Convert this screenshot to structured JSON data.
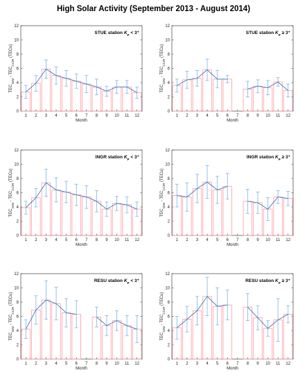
{
  "figure": {
    "title": "High Solar Activity (September 2013 - August 2014)"
  },
  "chart_data": [
    {
      "type": "bar",
      "panel": "top-left",
      "station": "STUE station",
      "kp_prefix": "K",
      "kp_sub": "P",
      "kp_cond": " < 3⁺",
      "ylabel_main": "TEC",
      "ylabel_sub1": "GIM",
      "ylabel_mid": " - TEC",
      "ylabel_sub2": "CCIR",
      "ylabel_unit": " (TECu)",
      "xlabel": "Month",
      "ylim": [
        0,
        12
      ],
      "yticks": [
        "0",
        "2",
        "4",
        "6",
        "8",
        "10",
        "12"
      ],
      "categories": [
        "1",
        "2",
        "3",
        "4",
        "5",
        "6",
        "7",
        "8",
        "9",
        "10",
        "11",
        "12"
      ],
      "values": [
        2.7,
        3.9,
        5.9,
        5.0,
        4.6,
        4.2,
        3.8,
        3.4,
        2.8,
        3.4,
        3.4,
        2.6
      ],
      "errors": [
        0.9,
        1.1,
        1.3,
        1.2,
        1.1,
        1.0,
        1.2,
        1.1,
        0.7,
        0.9,
        0.9,
        0.8
      ]
    },
    {
      "type": "bar",
      "panel": "top-right",
      "station": "STUE station",
      "kp_prefix": "K",
      "kp_sub": "P",
      "kp_cond": " ≥ 3⁺",
      "ylabel_main": "TEC",
      "ylabel_sub1": "GIM",
      "ylabel_mid": " - TEC",
      "ylabel_sub2": "CCIR",
      "ylabel_unit": " (TECu)",
      "xlabel": "Month",
      "ylim": [
        0,
        12
      ],
      "yticks": [
        "0",
        "2",
        "4",
        "6",
        "8",
        "10",
        "12"
      ],
      "categories": [
        "1",
        "2",
        "3",
        "4",
        "5",
        "6",
        "7",
        "8",
        "9",
        "10",
        "11",
        "12"
      ],
      "values": [
        3.6,
        4.4,
        4.6,
        5.8,
        4.5,
        4.5,
        null,
        3.1,
        3.5,
        3.3,
        4.1,
        2.9
      ],
      "errors": [
        0.9,
        1.2,
        1.1,
        1.5,
        1.2,
        0.5,
        null,
        1.1,
        0.9,
        1.0,
        0.6,
        0.9
      ]
    },
    {
      "type": "bar",
      "panel": "middle-left",
      "station": "INGR station",
      "kp_prefix": "K",
      "kp_sub": "P",
      "kp_cond": " < 3⁺",
      "ylabel_main": "TEC",
      "ylabel_sub1": "GIM",
      "ylabel_mid": " - TEC",
      "ylabel_sub2": "CCIR",
      "ylabel_unit": " (TECu)",
      "xlabel": "Month",
      "ylim": [
        0,
        12
      ],
      "yticks": [
        "0",
        "2",
        "4",
        "6",
        "8",
        "10",
        "12"
      ],
      "categories": [
        "1",
        "2",
        "3",
        "4",
        "5",
        "6",
        "7",
        "8",
        "9",
        "10",
        "11",
        "12"
      ],
      "values": [
        3.9,
        5.3,
        7.4,
        6.4,
        6.1,
        5.7,
        5.4,
        4.8,
        3.7,
        4.5,
        4.3,
        3.7
      ],
      "errors": [
        0.9,
        1.3,
        1.9,
        1.7,
        1.5,
        1.5,
        1.6,
        1.5,
        1.0,
        1.0,
        1.1,
        1.0
      ]
    },
    {
      "type": "bar",
      "panel": "middle-right",
      "station": "INGR station",
      "kp_prefix": "K",
      "kp_sub": "P",
      "kp_cond": " ≥ 3⁺",
      "ylabel_main": "TEC",
      "ylabel_sub1": "GIM",
      "ylabel_mid": " - TEC",
      "ylabel_sub2": "CCIR",
      "ylabel_unit": " (TECu)",
      "xlabel": "Month",
      "ylim": [
        0,
        12
      ],
      "yticks": [
        "0",
        "2",
        "4",
        "6",
        "8",
        "10",
        "12"
      ],
      "categories": [
        "1",
        "2",
        "3",
        "4",
        "5",
        "6",
        "7",
        "8",
        "9",
        "10",
        "11",
        "12"
      ],
      "values": [
        5.6,
        5.4,
        6.6,
        7.5,
        6.4,
        6.9,
        null,
        4.8,
        4.6,
        3.7,
        5.4,
        5.2
      ],
      "errors": [
        1.6,
        2.0,
        2.0,
        2.3,
        1.9,
        1.8,
        null,
        1.7,
        1.5,
        1.6,
        0.9,
        1.0
      ]
    },
    {
      "type": "bar",
      "panel": "bottom-left",
      "station": "RESU station",
      "kp_prefix": "K",
      "kp_sub": "P",
      "kp_cond": " < 3⁺",
      "ylabel_main": "TEC",
      "ylabel_sub1": "GIM",
      "ylabel_mid": " - TEC",
      "ylabel_sub2": "CCIR",
      "ylabel_unit": " (TECu)",
      "xlabel": "Month",
      "ylim": [
        0,
        12
      ],
      "yticks": [
        "0",
        "2",
        "4",
        "6",
        "8",
        "10",
        "12"
      ],
      "categories": [
        "1",
        "2",
        "3",
        "4",
        "5",
        "6",
        "7",
        "8",
        "9",
        "10",
        "11",
        "12"
      ],
      "values": [
        4.2,
        6.9,
        8.3,
        7.8,
        6.5,
        6.3,
        null,
        5.9,
        4.7,
        5.4,
        4.7,
        4.2
      ],
      "errors": [
        1.3,
        2.0,
        2.7,
        2.3,
        2.0,
        1.9,
        null,
        1.4,
        1.4,
        1.4,
        1.4,
        1.9
      ]
    },
    {
      "type": "bar",
      "panel": "bottom-right",
      "station": "RESU station",
      "kp_prefix": "K",
      "kp_sub": "P",
      "kp_cond": " ≥ 3⁺",
      "ylabel_main": "TEC",
      "ylabel_sub1": "GIM",
      "ylabel_mid": " - TEC",
      "ylabel_sub2": "CCIR",
      "ylabel_unit": " (TECu)",
      "xlabel": "Month",
      "ylim": [
        0,
        12
      ],
      "yticks": [
        "0",
        "2",
        "4",
        "6",
        "8",
        "10",
        "12"
      ],
      "categories": [
        "1",
        "2",
        "3",
        "4",
        "5",
        "6",
        "7",
        "8",
        "9",
        "10",
        "11",
        "12"
      ],
      "values": [
        4.4,
        5.6,
        6.8,
        8.8,
        7.4,
        7.6,
        null,
        7.3,
        5.8,
        4.3,
        5.5,
        6.3
      ],
      "errors": [
        1.6,
        1.8,
        2.0,
        2.7,
        2.6,
        2.1,
        null,
        1.9,
        1.7,
        1.1,
        3.0,
        1.2
      ]
    }
  ],
  "style": {
    "bar_edge": "#ff9aa2",
    "line": "#3c78c0",
    "errorbar": "#7fb2e0",
    "axis": "#222222"
  }
}
